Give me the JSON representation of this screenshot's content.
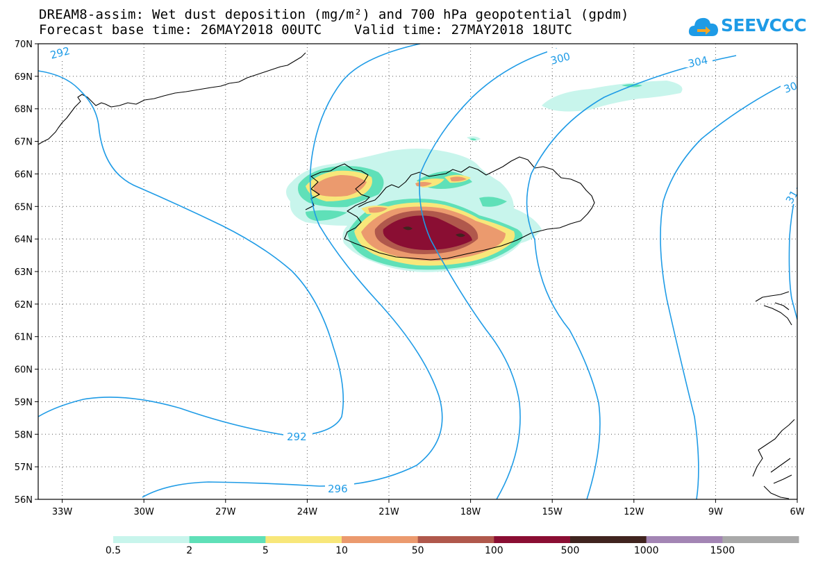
{
  "header": {
    "title_line1": "DREAM8-assim: Wet dust deposition (mg/m²) and 700 hPa geopotential (gpdm)",
    "title_line2": "Forecast base time: 26MAY2018 00UTC    Valid time: 27MAY2018 18UTC",
    "logo_text": "SEEVCCC",
    "logo_icon": "cloud-arrow-icon"
  },
  "map": {
    "lat_labels": [
      "70N",
      "69N",
      "68N",
      "67N",
      "66N",
      "65N",
      "64N",
      "63N",
      "62N",
      "61N",
      "60N",
      "59N",
      "58N",
      "57N",
      "56N"
    ],
    "lon_labels": [
      "33W",
      "30W",
      "27W",
      "24W",
      "21W",
      "18W",
      "15W",
      "12W",
      "9W",
      "6W"
    ],
    "contour_labels": [
      "292",
      "300",
      "304",
      "30",
      "31",
      "292",
      "296"
    ]
  },
  "colorbar": {
    "colors": [
      "#c8f5ec",
      "#5fe0b8",
      "#f8e77a",
      "#eb9a6e",
      "#b0584c",
      "#8a0e33",
      "#40241f",
      "#a385b4",
      "#a9a9a9"
    ],
    "labels": [
      "0.5",
      "2",
      "5",
      "10",
      "50",
      "100",
      "500",
      "1000",
      "1500"
    ]
  }
}
